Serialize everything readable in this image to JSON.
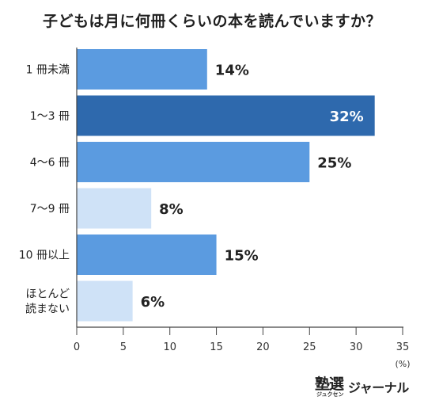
{
  "title": "子どもは月に何冊くらいの本を読んでいますか？",
  "logo": {
    "main": "塾選",
    "kana": "ジュクセン",
    "text": "ジャーナル"
  },
  "chart_data": {
    "type": "bar",
    "orientation": "horizontal",
    "categories": [
      "1冊未満",
      "1〜3冊",
      "4〜6冊",
      "7〜9冊",
      "10冊以上",
      "ほとんど読まない"
    ],
    "category_labels": [
      [
        "1 冊未満"
      ],
      [
        "1〜3 冊"
      ],
      [
        "4〜6 冊"
      ],
      [
        "7〜9 冊"
      ],
      [
        "10 冊以上"
      ],
      [
        "ほとんど",
        "読まない"
      ]
    ],
    "values": [
      14,
      32,
      25,
      8,
      15,
      6
    ],
    "value_labels": [
      "14%",
      "32%",
      "25%",
      "8%",
      "15%",
      "6%"
    ],
    "colors": [
      "#5b9be0",
      "#2e69ad",
      "#5b9be0",
      "#cfe2f7",
      "#5b9be0",
      "#cfe2f7"
    ],
    "highlight_index": 1,
    "xlim": [
      0,
      35
    ],
    "xticks": [
      0,
      5,
      10,
      15,
      20,
      25,
      30,
      35
    ],
    "unit": "(%)",
    "grid": false
  }
}
